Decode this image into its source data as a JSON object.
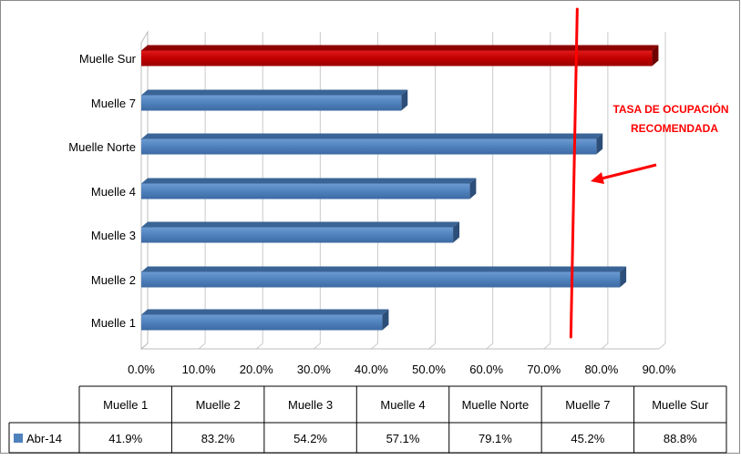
{
  "chart_data": {
    "type": "bar",
    "orientation": "horizontal",
    "style": "3d",
    "categories": [
      "Muelle 1",
      "Muelle 2",
      "Muelle 3",
      "Muelle 4",
      "Muelle Norte",
      "Muelle 7",
      "Muelle Sur"
    ],
    "series": [
      {
        "name": "Abr-14",
        "values": [
          41.9,
          83.2,
          54.2,
          57.1,
          79.1,
          45.2,
          88.8
        ],
        "value_labels": [
          "41.9%",
          "83.2%",
          "54.2%",
          "57.1%",
          "79.1%",
          "45.2%",
          "88.8%"
        ]
      }
    ],
    "xlim": [
      0,
      90
    ],
    "xticks": [
      0,
      10,
      20,
      30,
      40,
      50,
      60,
      70,
      80,
      90
    ],
    "xtick_labels": [
      "0.0%",
      "10.0%",
      "20.0%",
      "30.0%",
      "40.0%",
      "50.0%",
      "60.0%",
      "70.0%",
      "80.0%",
      "90.0%"
    ],
    "highlight": {
      "category": "Muelle Sur",
      "color": "#c00000"
    },
    "bar_color": "#4f81bd",
    "grid": "vertical",
    "legend": "data-table",
    "reference_line": {
      "value": 75,
      "color": "#ff0000",
      "label_line1": "TASA DE OCUPACIÓN",
      "label_line2": "RECOMENDADA"
    }
  }
}
